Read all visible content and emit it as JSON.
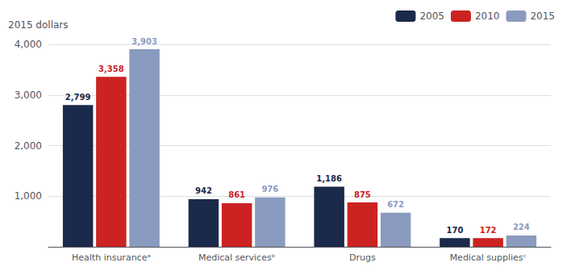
{
  "chart_data": {
    "type": "bar",
    "ylabel": "2015 dollars",
    "categories": [
      "Health insuranceᵃ",
      "Medical servicesᵇ",
      "Drugs",
      "Medical suppliesᶜ"
    ],
    "series": [
      {
        "name": "2005",
        "color": "#1b2a4a",
        "values": [
          2799,
          942,
          1186,
          170
        ],
        "value_labels": [
          "2,799",
          "942",
          "1,186",
          "170"
        ]
      },
      {
        "name": "2010",
        "color": "#cc2222",
        "values": [
          3358,
          861,
          875,
          172
        ],
        "value_labels": [
          "3,358",
          "861",
          "875",
          "172"
        ]
      },
      {
        "name": "2015",
        "color": "#8a9bbf",
        "values": [
          3903,
          976,
          672,
          224
        ],
        "value_labels": [
          "3,903",
          "976",
          "672",
          "224"
        ]
      }
    ],
    "ylim": [
      0,
      4000
    ],
    "yticks": [
      {
        "value": 0,
        "label": null
      },
      {
        "value": 1000,
        "label": "1,000"
      },
      {
        "value": 2000,
        "label": "2,000"
      },
      {
        "value": 3000,
        "label": "3,000"
      },
      {
        "value": 4000,
        "label": "4,000"
      }
    ],
    "grid": true,
    "legend": "upper right",
    "data_labels": true
  }
}
